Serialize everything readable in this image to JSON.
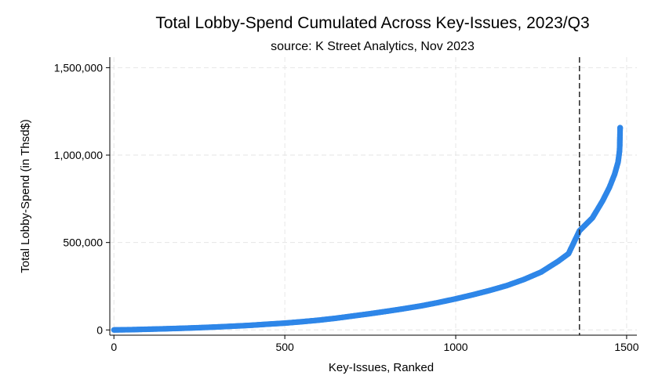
{
  "chart_data": {
    "type": "scatter",
    "title": "Total Lobby-Spend Cumulated Across Key-Issues, 2023/Q3",
    "subtitle": "source: K Street Analytics, Nov 2023",
    "xlabel": "Key-Issues, Ranked",
    "ylabel": "Total Lobby-Spend (in Thsd$)",
    "xlim": [
      -12,
      1530
    ],
    "ylim": [
      -30000,
      1560000
    ],
    "xticks": [
      0,
      500,
      1000,
      1500
    ],
    "xtick_labels": [
      "0",
      "500",
      "1000",
      "1500"
    ],
    "yticks": [
      0,
      500000,
      1000000,
      1500000
    ],
    "ytick_labels": [
      "0",
      "500,000",
      "1,000,000",
      "1,500,000"
    ],
    "grid": true,
    "reference_line": {
      "x": 1362,
      "style": "dashed"
    },
    "series_color": "#2e86e8",
    "points": [
      [
        0,
        0
      ],
      [
        50,
        1500
      ],
      [
        100,
        4000
      ],
      [
        150,
        6500
      ],
      [
        200,
        9500
      ],
      [
        250,
        13000
      ],
      [
        300,
        17000
      ],
      [
        350,
        21500
      ],
      [
        400,
        26500
      ],
      [
        450,
        33000
      ],
      [
        500,
        39000
      ],
      [
        550,
        47000
      ],
      [
        600,
        56000
      ],
      [
        650,
        67000
      ],
      [
        700,
        80000
      ],
      [
        750,
        93000
      ],
      [
        800,
        107000
      ],
      [
        850,
        122000
      ],
      [
        900,
        138000
      ],
      [
        950,
        157000
      ],
      [
        1000,
        178000
      ],
      [
        1050,
        201000
      ],
      [
        1100,
        226000
      ],
      [
        1150,
        254000
      ],
      [
        1200,
        289000
      ],
      [
        1250,
        331000
      ],
      [
        1300,
        393000
      ],
      [
        1330,
        436000
      ],
      [
        1362,
        567000
      ],
      [
        1400,
        641000
      ],
      [
        1430,
        739000
      ],
      [
        1450,
        817000
      ],
      [
        1465,
        891000
      ],
      [
        1475,
        960000
      ],
      [
        1479,
        1020000
      ],
      [
        1480,
        1055000
      ],
      [
        1480,
        1071000
      ],
      [
        1481,
        1156000
      ]
    ]
  }
}
